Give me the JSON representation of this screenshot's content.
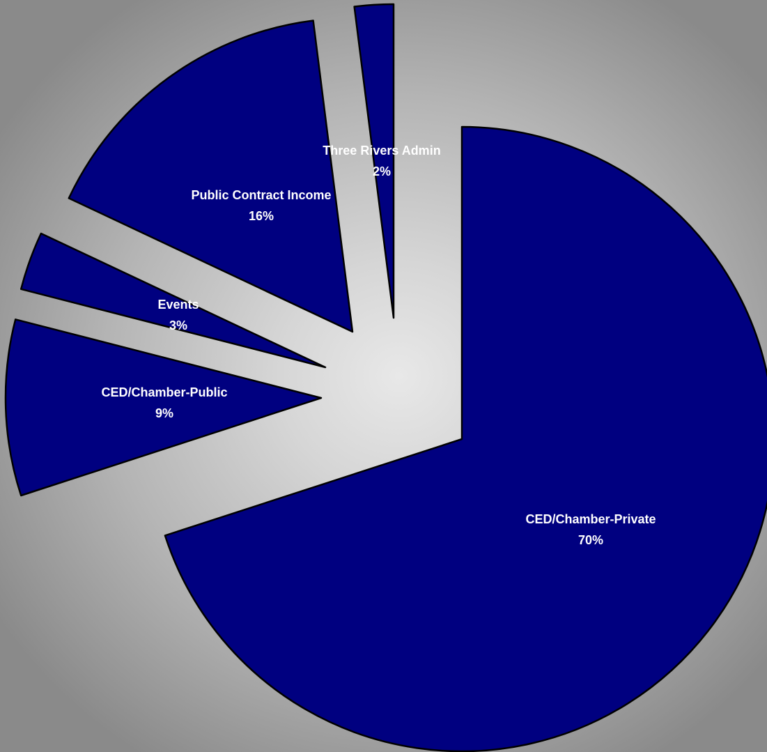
{
  "chart_data": {
    "type": "pie",
    "title": "",
    "legend": "none",
    "colors": {
      "slice_fill": "#000080",
      "slice_stroke": "#000000",
      "label_text": "#ffffff"
    },
    "slices": [
      {
        "label": "CED/Chamber-Private",
        "value": 70,
        "value_label": "70%"
      },
      {
        "label": "CED/Chamber-Public",
        "value": 9,
        "value_label": "9%"
      },
      {
        "label": "Events",
        "value": 3,
        "value_label": "3%"
      },
      {
        "label": "Public Contract Income",
        "value": 16,
        "value_label": "16%"
      },
      {
        "label": "Three Rivers Admin",
        "value": 2,
        "value_label": "2%"
      }
    ]
  }
}
